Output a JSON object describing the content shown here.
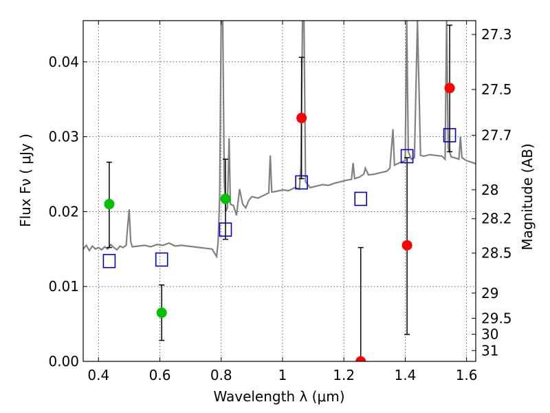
{
  "chart_data": {
    "type": "scatter",
    "xlabel": "Wavelength  λ (μm)",
    "ylabel": "Flux  Fν  ( μJy )",
    "ylabel_right": "Magnitude (AB)",
    "xlim": [
      0.35,
      1.63
    ],
    "ylim": [
      0.0,
      0.0455
    ],
    "x_ticks": [
      0.4,
      0.6,
      0.8,
      1.0,
      1.2,
      1.4,
      1.6
    ],
    "x_tick_labels": [
      "0.4",
      "0.6",
      "0.8",
      "1",
      "1.2",
      "1.4",
      "1.6"
    ],
    "y_ticks": [
      0.0,
      0.01,
      0.02,
      0.03,
      0.04
    ],
    "y_tick_labels": [
      "0.00",
      "0.01",
      "0.02",
      "0.03",
      "0.04"
    ],
    "mag_ticks": [
      27.3,
      27.5,
      27.7,
      28,
      28.2,
      28.5,
      29,
      29.5,
      30,
      31
    ],
    "mag_tick_labels": [
      "27.3",
      "27.5",
      "27.7",
      "28",
      "28.2",
      "28.5",
      "29",
      "29.5",
      "30",
      "31"
    ],
    "grid": true,
    "colors": {
      "detections_optical": "#00c000",
      "detections_nir": "#ff0000",
      "model_box": "#0000cc",
      "spectrum": "#808080",
      "errorbar": "#000000"
    },
    "observed_points": [
      {
        "name": "obs-0.43",
        "x": 0.435,
        "y": 0.021,
        "yerr_low": 0.0152,
        "yerr_high": 0.0266,
        "color": "#00c000"
      },
      {
        "name": "obs-0.60",
        "x": 0.606,
        "y": 0.0065,
        "yerr_low": 0.0028,
        "yerr_high": 0.0102,
        "color": "#00c000"
      },
      {
        "name": "obs-0.81",
        "x": 0.814,
        "y": 0.0217,
        "yerr_low": 0.0163,
        "yerr_high": 0.027,
        "color": "#00c000"
      },
      {
        "name": "obs-1.06",
        "x": 1.062,
        "y": 0.0325,
        "yerr_low": 0.0244,
        "yerr_high": 0.0406,
        "color": "#ff0000"
      },
      {
        "name": "obs-1.25",
        "x": 1.255,
        "y": 0.0,
        "yerr_low": 0.0,
        "yerr_high": 0.0152,
        "color": "#ff0000"
      },
      {
        "name": "obs-1.40",
        "x": 1.406,
        "y": 0.0155,
        "yerr_low": 0.0036,
        "yerr_high": 0.0272,
        "color": "#ff0000"
      },
      {
        "name": "obs-1.54",
        "x": 1.545,
        "y": 0.0365,
        "yerr_low": 0.028,
        "yerr_high": 0.0449,
        "color": "#ff0000"
      }
    ],
    "model_points": [
      {
        "name": "model-0.43",
        "x": 0.435,
        "y": 0.0134
      },
      {
        "name": "model-0.60",
        "x": 0.606,
        "y": 0.0136
      },
      {
        "name": "model-0.81",
        "x": 0.814,
        "y": 0.0176
      },
      {
        "name": "model-1.06",
        "x": 1.062,
        "y": 0.0239
      },
      {
        "name": "model-1.25",
        "x": 1.255,
        "y": 0.0217
      },
      {
        "name": "model-1.40",
        "x": 1.406,
        "y": 0.0274
      },
      {
        "name": "model-1.54",
        "x": 1.545,
        "y": 0.0302
      }
    ],
    "spectrum": [
      [
        0.35,
        0.015
      ],
      [
        0.36,
        0.0155
      ],
      [
        0.37,
        0.0148
      ],
      [
        0.38,
        0.0154
      ],
      [
        0.39,
        0.015
      ],
      [
        0.4,
        0.0152
      ],
      [
        0.41,
        0.0149
      ],
      [
        0.42,
        0.0153
      ],
      [
        0.43,
        0.015
      ],
      [
        0.44,
        0.0156
      ],
      [
        0.45,
        0.0152
      ],
      [
        0.46,
        0.0149
      ],
      [
        0.47,
        0.0154
      ],
      [
        0.48,
        0.0152
      ],
      [
        0.49,
        0.0155
      ],
      [
        0.495,
        0.018
      ],
      [
        0.5,
        0.0203
      ],
      [
        0.505,
        0.016
      ],
      [
        0.51,
        0.0153
      ],
      [
        0.53,
        0.0154
      ],
      [
        0.55,
        0.0155
      ],
      [
        0.57,
        0.0153
      ],
      [
        0.59,
        0.0156
      ],
      [
        0.61,
        0.0155
      ],
      [
        0.63,
        0.0158
      ],
      [
        0.65,
        0.0154
      ],
      [
        0.67,
        0.0155
      ],
      [
        0.69,
        0.0154
      ],
      [
        0.71,
        0.0153
      ],
      [
        0.73,
        0.0152
      ],
      [
        0.75,
        0.0151
      ],
      [
        0.77,
        0.015
      ],
      [
        0.785,
        0.014
      ],
      [
        0.79,
        0.016
      ],
      [
        0.795,
        0.022
      ],
      [
        0.8,
        0.0455
      ],
      [
        0.805,
        0.0455
      ],
      [
        0.81,
        0.024
      ],
      [
        0.815,
        0.02
      ],
      [
        0.82,
        0.0205
      ],
      [
        0.826,
        0.0298
      ],
      [
        0.83,
        0.021
      ],
      [
        0.84,
        0.0208
      ],
      [
        0.85,
        0.0195
      ],
      [
        0.86,
        0.023
      ],
      [
        0.87,
        0.021
      ],
      [
        0.88,
        0.0205
      ],
      [
        0.89,
        0.0215
      ],
      [
        0.9,
        0.022
      ],
      [
        0.92,
        0.0218
      ],
      [
        0.94,
        0.0222
      ],
      [
        0.955,
        0.0225
      ],
      [
        0.96,
        0.0275
      ],
      [
        0.965,
        0.0226
      ],
      [
        0.98,
        0.0227
      ],
      [
        1.0,
        0.0229
      ],
      [
        1.02,
        0.0228
      ],
      [
        1.04,
        0.0232
      ],
      [
        1.055,
        0.023
      ],
      [
        1.06,
        0.026
      ],
      [
        1.065,
        0.0455
      ],
      [
        1.07,
        0.0455
      ],
      [
        1.075,
        0.024
      ],
      [
        1.09,
        0.0232
      ],
      [
        1.11,
        0.0234
      ],
      [
        1.13,
        0.0236
      ],
      [
        1.15,
        0.0235
      ],
      [
        1.17,
        0.0238
      ],
      [
        1.19,
        0.024
      ],
      [
        1.21,
        0.0242
      ],
      [
        1.225,
        0.0243
      ],
      [
        1.23,
        0.0265
      ],
      [
        1.235,
        0.0244
      ],
      [
        1.25,
        0.0246
      ],
      [
        1.265,
        0.025
      ],
      [
        1.27,
        0.0258
      ],
      [
        1.28,
        0.0249
      ],
      [
        1.3,
        0.025
      ],
      [
        1.32,
        0.0252
      ],
      [
        1.34,
        0.0254
      ],
      [
        1.35,
        0.0258
      ],
      [
        1.36,
        0.031
      ],
      [
        1.365,
        0.0262
      ],
      [
        1.38,
        0.0265
      ],
      [
        1.4,
        0.0268
      ],
      [
        1.405,
        0.0455
      ],
      [
        1.41,
        0.028
      ],
      [
        1.42,
        0.027
      ],
      [
        1.43,
        0.0272
      ],
      [
        1.44,
        0.0455
      ],
      [
        1.45,
        0.0275
      ],
      [
        1.46,
        0.0274
      ],
      [
        1.48,
        0.0276
      ],
      [
        1.5,
        0.0275
      ],
      [
        1.52,
        0.0274
      ],
      [
        1.53,
        0.027
      ],
      [
        1.535,
        0.0455
      ],
      [
        1.54,
        0.0285
      ],
      [
        1.55,
        0.0273
      ],
      [
        1.56,
        0.0272
      ],
      [
        1.575,
        0.027
      ],
      [
        1.58,
        0.03
      ],
      [
        1.585,
        0.0272
      ],
      [
        1.6,
        0.0268
      ],
      [
        1.615,
        0.0266
      ],
      [
        1.63,
        0.0264
      ]
    ]
  }
}
